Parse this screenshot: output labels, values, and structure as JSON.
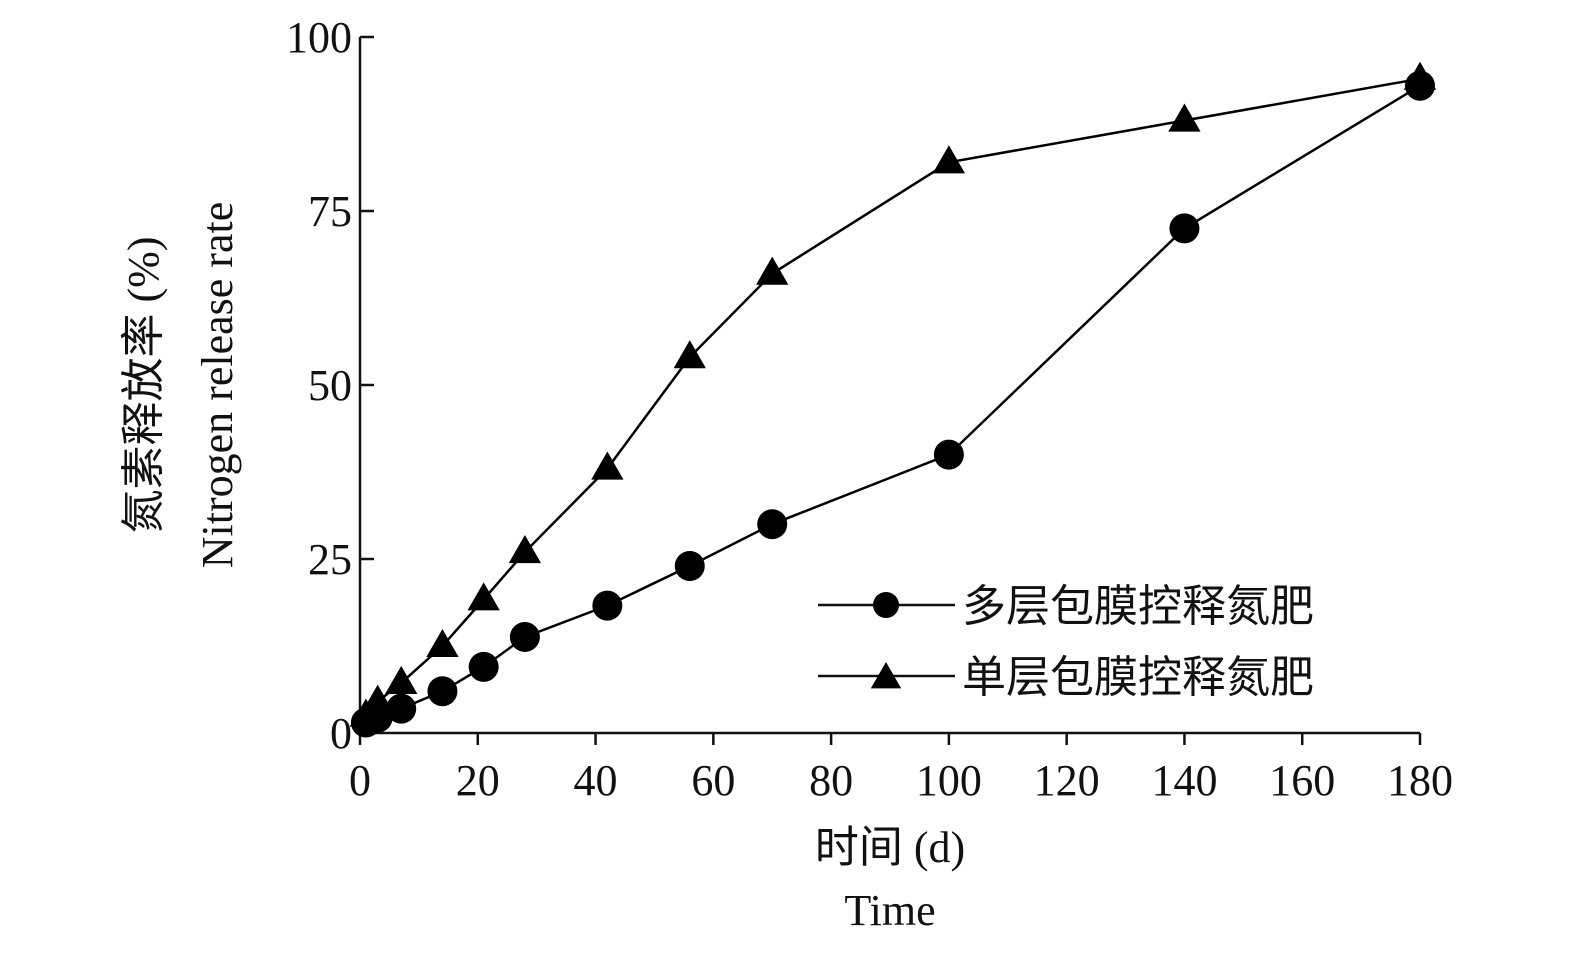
{
  "chart_data": {
    "type": "line",
    "title": "",
    "xlabel": "时间 (d)",
    "xlabel_en": "Time",
    "ylabel": "氮素释放率 (%)",
    "ylabel_en": "Nitrogen release rate",
    "xlim": [
      0,
      180
    ],
    "ylim": [
      0,
      100
    ],
    "xticks": [
      0,
      20,
      40,
      60,
      80,
      100,
      120,
      140,
      160,
      180
    ],
    "yticks": [
      0,
      25,
      50,
      75,
      100
    ],
    "grid": false,
    "legend_position": "bottom-right",
    "series": [
      {
        "name": "多层包膜控释氮肥",
        "marker": "circle",
        "color": "#000000",
        "x": [
          1,
          3,
          7,
          14,
          21,
          28,
          42,
          56,
          70,
          100,
          140,
          180
        ],
        "y": [
          1.5,
          2.2,
          3.5,
          6.0,
          9.5,
          13.8,
          18.3,
          24.0,
          30.0,
          40.0,
          72.5,
          93.0
        ]
      },
      {
        "name": "单层包膜控释氮肥",
        "marker": "triangle",
        "color": "#000000",
        "x": [
          1,
          3,
          7,
          14,
          21,
          28,
          42,
          56,
          70,
          100,
          140,
          180
        ],
        "y": [
          2.5,
          4.5,
          7.2,
          12.5,
          19.2,
          26.0,
          38.0,
          54.0,
          66.0,
          82.0,
          88.0,
          94.0
        ]
      }
    ]
  }
}
